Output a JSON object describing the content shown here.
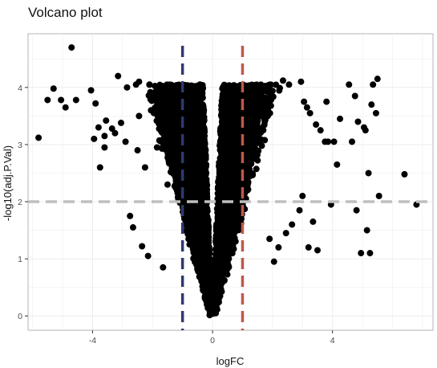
{
  "chart_data": {
    "type": "scatter",
    "title": "Volcano plot",
    "xlabel": "logFC",
    "ylabel": "-log10(adj.P.Val)",
    "xlim": [
      -6.15,
      7.35
    ],
    "ylim": [
      -0.25,
      4.94
    ],
    "xticks": [
      -4,
      0,
      4
    ],
    "yticks": [
      0,
      1,
      2,
      3,
      4
    ],
    "x_tick_labels": [
      "-4",
      "0",
      "4"
    ],
    "y_tick_labels": [
      "0",
      "1",
      "2",
      "3",
      "4"
    ],
    "grid": true,
    "legend": "none",
    "thresholds": {
      "logfc_neg": -1,
      "logfc_pos": 1,
      "pval": 2
    },
    "colors": {
      "points": "#000000",
      "logfc_neg_line": "#2e3a6e",
      "logfc_pos_line": "#c0584a",
      "pval_line": "#bfbfbf",
      "grid": "#ebebeb",
      "panel_border": "#b3b3b3"
    },
    "series": [
      {
        "x": [
          -4.7,
          -5.5,
          -5.8,
          -5.3,
          -5.05,
          -4.55,
          -4.9,
          -4.05,
          -3.9,
          -3.8,
          -3.55,
          -3.6,
          -3.35,
          -3.25,
          -3.05,
          -3.15,
          -2.9,
          -3.6,
          -2.45,
          -2.05,
          -2.85,
          -3.95,
          -3.75,
          -2.5,
          -2.25,
          -1.85,
          -1.5,
          -1.55,
          -2.1,
          -2.55,
          -2.45,
          -2.75,
          -2.65,
          -2.35,
          -2.15,
          -1.65
        ],
        "y": [
          4.7,
          3.78,
          3.12,
          3.98,
          3.78,
          3.78,
          3.65,
          3.95,
          3.72,
          3.3,
          3.42,
          3.15,
          3.28,
          3.2,
          3.38,
          4.2,
          3.05,
          2.95,
          3.5,
          3.6,
          4.0,
          3.1,
          2.6,
          2.9,
          2.6,
          2.95,
          2.3,
          3.55,
          4.05,
          4.05,
          4.1,
          1.75,
          1.55,
          1.22,
          1.05,
          0.85
        ]
      },
      {
        "x": [
          2.35,
          2.55,
          2.95,
          3.15,
          3.05,
          3.25,
          3.45,
          3.6,
          3.85,
          4.05,
          4.25,
          4.55,
          4.65,
          4.75,
          4.8,
          4.95,
          5.15,
          5.25,
          5.35,
          5.45,
          5.5,
          5.1,
          6.4,
          6.8,
          3.8,
          3.75,
          4.15,
          4.85,
          5.05,
          5.3,
          5.2,
          5.55,
          3.35,
          3.2,
          2.9,
          2.65,
          2.45,
          2.2,
          3.0,
          1.9,
          2.05,
          3.5,
          3.95
        ],
        "y": [
          4.12,
          4.05,
          4.1,
          3.65,
          3.75,
          3.55,
          3.35,
          3.25,
          3.05,
          3.05,
          3.45,
          4.05,
          3.05,
          3.85,
          1.85,
          1.1,
          1.5,
          1.1,
          4.05,
          3.55,
          4.15,
          3.25,
          2.48,
          1.95,
          3.75,
          3.05,
          2.65,
          3.4,
          3.3,
          3.7,
          2.5,
          2.1,
          1.65,
          1.2,
          1.85,
          1.6,
          1.45,
          1.2,
          2.1,
          1.35,
          0.95,
          1.15,
          1.95
        ]
      }
    ]
  }
}
